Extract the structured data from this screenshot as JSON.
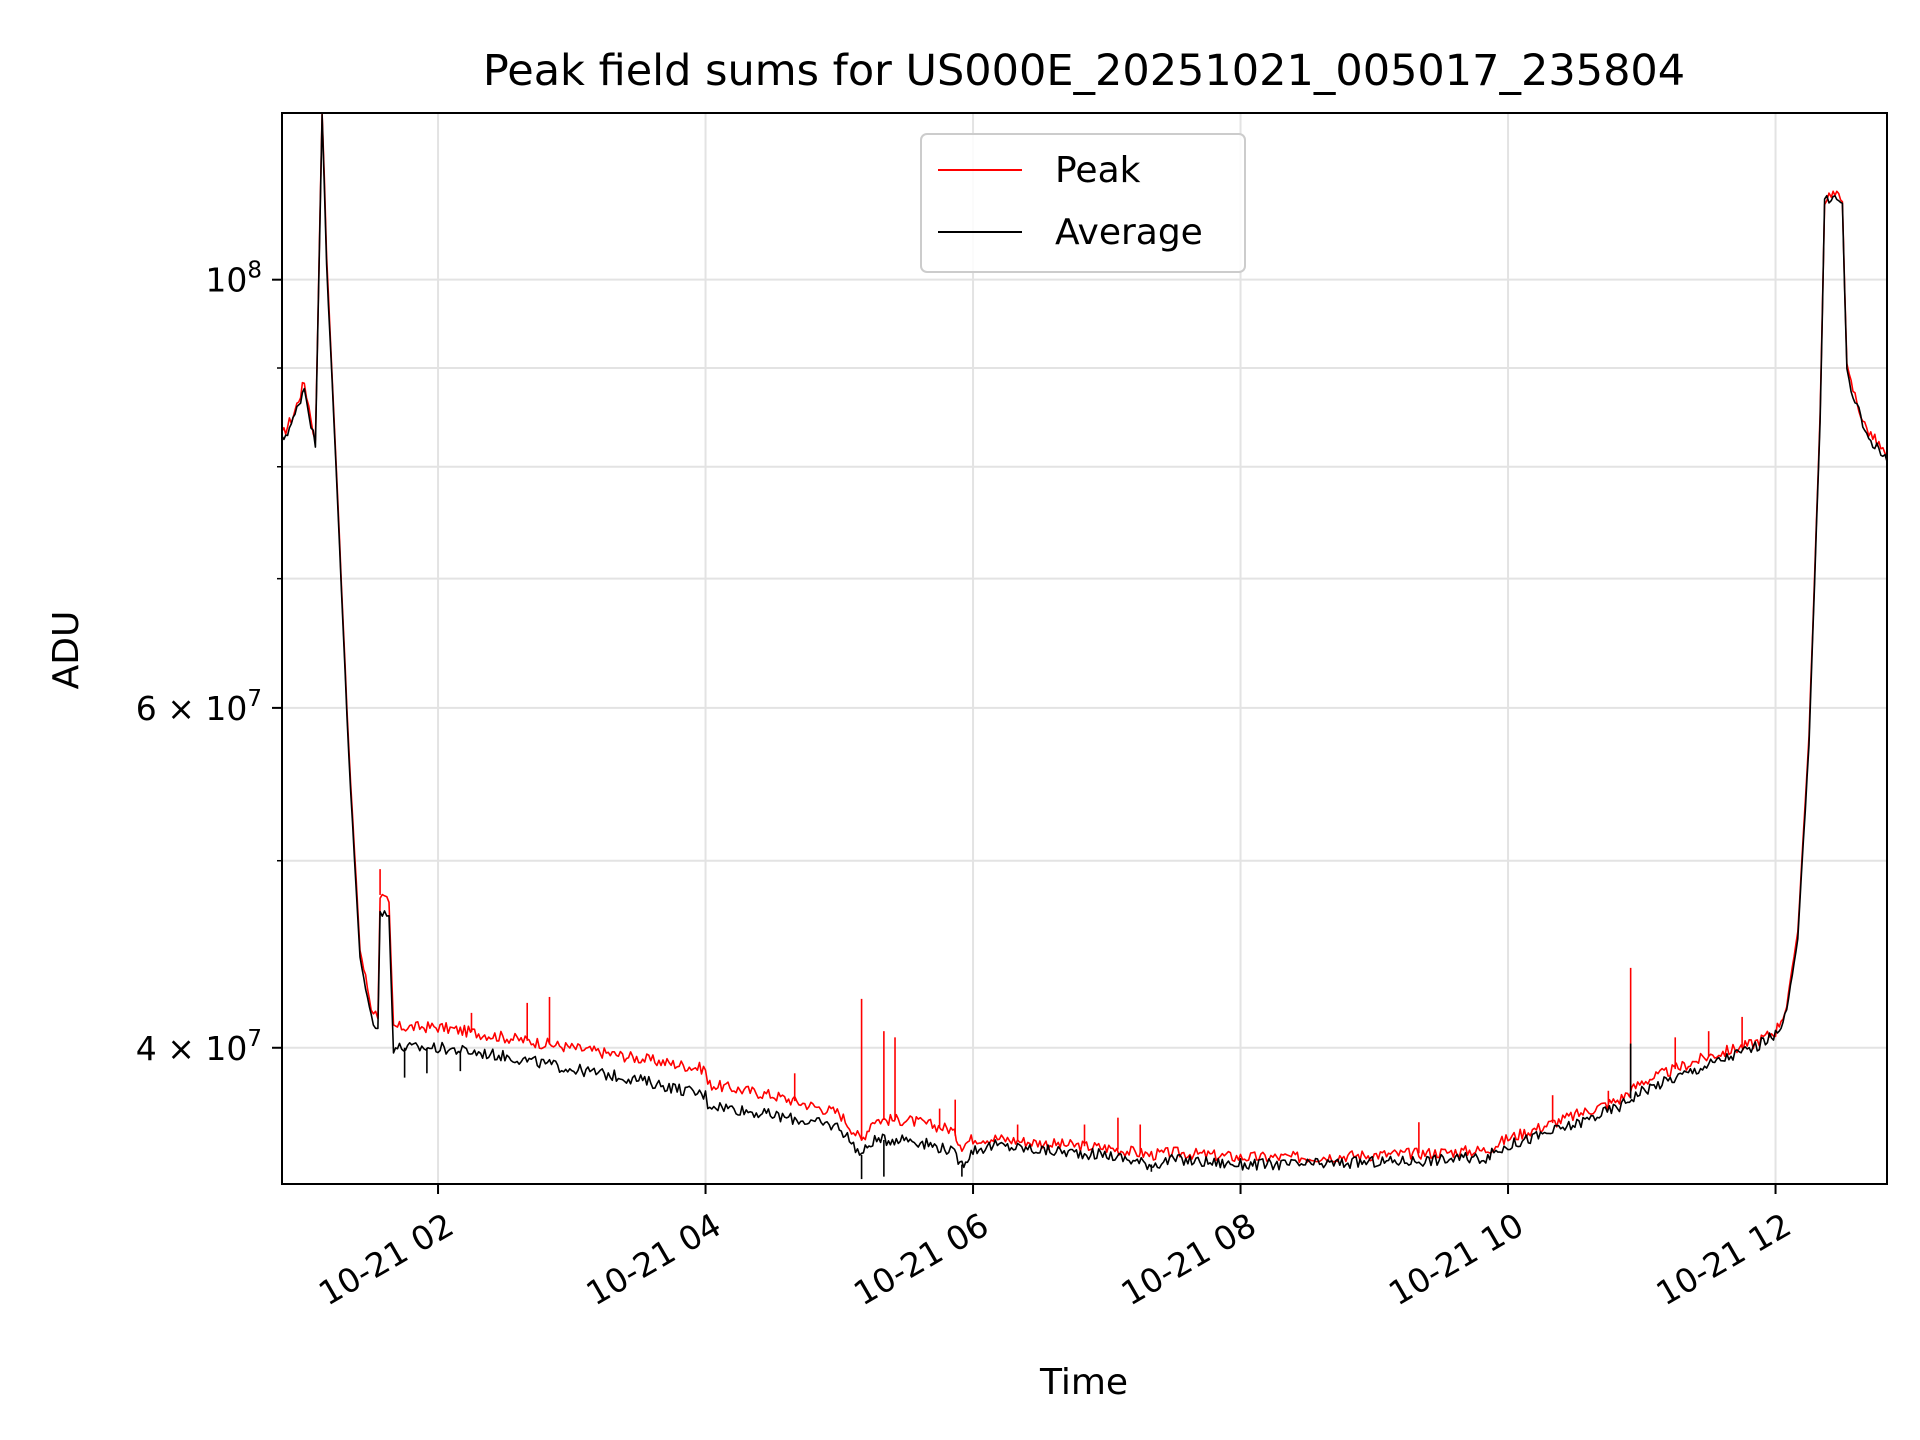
{
  "chart_data": {
    "type": "line",
    "title": "Peak field sums for US000E_20251021_005017_235804",
    "xlabel": "Time",
    "ylabel": "ADU",
    "yscale": "log",
    "xlim": [
      "2025-10-21 00:50",
      "2025-10-21 12:50"
    ],
    "ylim": [
      34000000,
      122000000
    ],
    "grid": true,
    "legend_position": "top-center",
    "x_ticks": [
      {
        "value": "2025-10-21 02:00",
        "label": "10-21 02"
      },
      {
        "value": "2025-10-21 04:00",
        "label": "10-21 04"
      },
      {
        "value": "2025-10-21 06:00",
        "label": "10-21 06"
      },
      {
        "value": "2025-10-21 08:00",
        "label": "10-21 08"
      },
      {
        "value": "2025-10-21 10:00",
        "label": "10-21 10"
      },
      {
        "value": "2025-10-21 12:00",
        "label": "10-21 12"
      }
    ],
    "y_ticks": [
      {
        "value": 40000000,
        "base": "4 × 10",
        "exp": "7"
      },
      {
        "value": 60000000,
        "base": "6 × 10",
        "exp": "7"
      },
      {
        "value": 100000000,
        "base": "10",
        "exp": "8"
      }
    ],
    "y_minor_gridlines": [
      50000000,
      70000000,
      80000000,
      90000000
    ],
    "series": [
      {
        "name": "Peak",
        "color": "#ff0000",
        "x": [
          "2025-10-21 00:50",
          "2025-10-21 00:55",
          "2025-10-21 01:00",
          "2025-10-21 01:02",
          "2025-10-21 01:05",
          "2025-10-21 01:08",
          "2025-10-21 01:10",
          "2025-10-21 01:15",
          "2025-10-21 01:20",
          "2025-10-21 01:25",
          "2025-10-21 01:30",
          "2025-10-21 01:33",
          "2025-10-21 01:34",
          "2025-10-21 01:38",
          "2025-10-21 01:40",
          "2025-10-21 02:00",
          "2025-10-21 02:30",
          "2025-10-21 03:00",
          "2025-10-21 03:30",
          "2025-10-21 04:00",
          "2025-10-21 04:01",
          "2025-10-21 04:30",
          "2025-10-21 05:00",
          "2025-10-21 05:10",
          "2025-10-21 05:15",
          "2025-10-21 05:30",
          "2025-10-21 05:50",
          "2025-10-21 05:55",
          "2025-10-21 06:00",
          "2025-10-21 06:10",
          "2025-10-21 06:30",
          "2025-10-21 07:00",
          "2025-10-21 07:20",
          "2025-10-21 07:30",
          "2025-10-21 08:00",
          "2025-10-21 08:30",
          "2025-10-21 09:00",
          "2025-10-21 09:30",
          "2025-10-21 09:50",
          "2025-10-21 10:00",
          "2025-10-21 10:30",
          "2025-10-21 10:50",
          "2025-10-21 11:00",
          "2025-10-21 11:30",
          "2025-10-21 11:50",
          "2025-10-21 12:00",
          "2025-10-21 12:05",
          "2025-10-21 12:10",
          "2025-10-21 12:15",
          "2025-10-21 12:20",
          "2025-10-21 12:22",
          "2025-10-21 12:25",
          "2025-10-21 12:30",
          "2025-10-21 12:32",
          "2025-10-21 12:33",
          "2025-10-21 12:40",
          "2025-10-21 12:50"
        ],
        "y": [
          83000000,
          85000000,
          88500000,
          86000000,
          82500000,
          123000000,
          103000000,
          77000000,
          57000000,
          45000000,
          42000000,
          41500000,
          48000000,
          47500000,
          41000000,
          41000000,
          40500000,
          40000000,
          39500000,
          39000000,
          38300000,
          37800000,
          37000000,
          35800000,
          36700000,
          36700000,
          36300000,
          35600000,
          35900000,
          35900000,
          35700000,
          35500000,
          35200000,
          35300000,
          35100000,
          35100000,
          35200000,
          35300000,
          35400000,
          35900000,
          36900000,
          37600000,
          38400000,
          39600000,
          40200000,
          40800000,
          42000000,
          46000000,
          58000000,
          85000000,
          110000000,
          111000000,
          110000000,
          90000000,
          89000000,
          84000000,
          81000000
        ],
        "spikes": [
          {
            "x": "2025-10-21 01:34",
            "y": 49500000
          },
          {
            "x": "2025-10-21 02:15",
            "y": 41700000
          },
          {
            "x": "2025-10-21 02:40",
            "y": 42200000
          },
          {
            "x": "2025-10-21 02:50",
            "y": 42500000
          },
          {
            "x": "2025-10-21 04:00",
            "y": 39000000
          },
          {
            "x": "2025-10-21 04:40",
            "y": 38800000
          },
          {
            "x": "2025-10-21 05:10",
            "y": 42400000
          },
          {
            "x": "2025-10-21 05:20",
            "y": 40800000
          },
          {
            "x": "2025-10-21 05:25",
            "y": 40500000
          },
          {
            "x": "2025-10-21 05:45",
            "y": 37200000
          },
          {
            "x": "2025-10-21 05:52",
            "y": 37600000
          },
          {
            "x": "2025-10-21 06:20",
            "y": 36500000
          },
          {
            "x": "2025-10-21 06:50",
            "y": 36500000
          },
          {
            "x": "2025-10-21 07:05",
            "y": 36800000
          },
          {
            "x": "2025-10-21 07:15",
            "y": 36500000
          },
          {
            "x": "2025-10-21 09:20",
            "y": 36600000
          },
          {
            "x": "2025-10-21 10:20",
            "y": 37800000
          },
          {
            "x": "2025-10-21 10:45",
            "y": 38000000
          },
          {
            "x": "2025-10-21 10:55",
            "y": 44000000
          },
          {
            "x": "2025-10-21 11:15",
            "y": 40500000
          },
          {
            "x": "2025-10-21 11:30",
            "y": 40800000
          },
          {
            "x": "2025-10-21 11:45",
            "y": 41500000
          }
        ]
      },
      {
        "name": "Average",
        "color": "#000000",
        "x": [
          "2025-10-21 00:50",
          "2025-10-21 00:55",
          "2025-10-21 01:00",
          "2025-10-21 01:02",
          "2025-10-21 01:05",
          "2025-10-21 01:08",
          "2025-10-21 01:10",
          "2025-10-21 01:15",
          "2025-10-21 01:20",
          "2025-10-21 01:25",
          "2025-10-21 01:30",
          "2025-10-21 01:33",
          "2025-10-21 01:34",
          "2025-10-21 01:38",
          "2025-10-21 01:40",
          "2025-10-21 02:00",
          "2025-10-21 02:30",
          "2025-10-21 03:00",
          "2025-10-21 03:30",
          "2025-10-21 04:00",
          "2025-10-21 04:01",
          "2025-10-21 04:30",
          "2025-10-21 05:00",
          "2025-10-21 05:10",
          "2025-10-21 05:15",
          "2025-10-21 05:30",
          "2025-10-21 05:50",
          "2025-10-21 05:55",
          "2025-10-21 06:00",
          "2025-10-21 06:10",
          "2025-10-21 06:30",
          "2025-10-21 07:00",
          "2025-10-21 07:20",
          "2025-10-21 07:30",
          "2025-10-21 08:00",
          "2025-10-21 08:30",
          "2025-10-21 09:00",
          "2025-10-21 09:30",
          "2025-10-21 09:50",
          "2025-10-21 10:00",
          "2025-10-21 10:30",
          "2025-10-21 10:50",
          "2025-10-21 11:00",
          "2025-10-21 11:30",
          "2025-10-21 11:50",
          "2025-10-21 12:00",
          "2025-10-21 12:05",
          "2025-10-21 12:10",
          "2025-10-21 12:15",
          "2025-10-21 12:20",
          "2025-10-21 12:22",
          "2025-10-21 12:25",
          "2025-10-21 12:30",
          "2025-10-21 12:32",
          "2025-10-21 12:33",
          "2025-10-21 12:40",
          "2025-10-21 12:50"
        ],
        "y": [
          82500000,
          84500000,
          88000000,
          85500000,
          82000000,
          122000000,
          102000000,
          76500000,
          56500000,
          44500000,
          41500000,
          41000000,
          47000000,
          46800000,
          40000000,
          40000000,
          39600000,
          39000000,
          38500000,
          37800000,
          37400000,
          36900000,
          36400000,
          35200000,
          35800000,
          35900000,
          35400000,
          34800000,
          35400000,
          35600000,
          35400000,
          35200000,
          34800000,
          35000000,
          34800000,
          34800000,
          34900000,
          35000000,
          35100000,
          35600000,
          36500000,
          37300000,
          38000000,
          39200000,
          40000000,
          40600000,
          41800000,
          45500000,
          57500000,
          84500000,
          109500000,
          110500000,
          109500000,
          89500000,
          88500000,
          83500000,
          80500000
        ],
        "spikes": [
          {
            "x": "2025-10-21 01:45",
            "y": 38600000
          },
          {
            "x": "2025-10-21 01:55",
            "y": 38800000
          },
          {
            "x": "2025-10-21 02:10",
            "y": 38900000
          },
          {
            "x": "2025-10-21 05:10",
            "y": 34200000
          },
          {
            "x": "2025-10-21 05:20",
            "y": 34300000
          },
          {
            "x": "2025-10-21 05:55",
            "y": 34300000
          },
          {
            "x": "2025-10-21 07:20",
            "y": 34500000
          },
          {
            "x": "2025-10-21 10:55",
            "y": 40200000
          }
        ]
      }
    ]
  }
}
